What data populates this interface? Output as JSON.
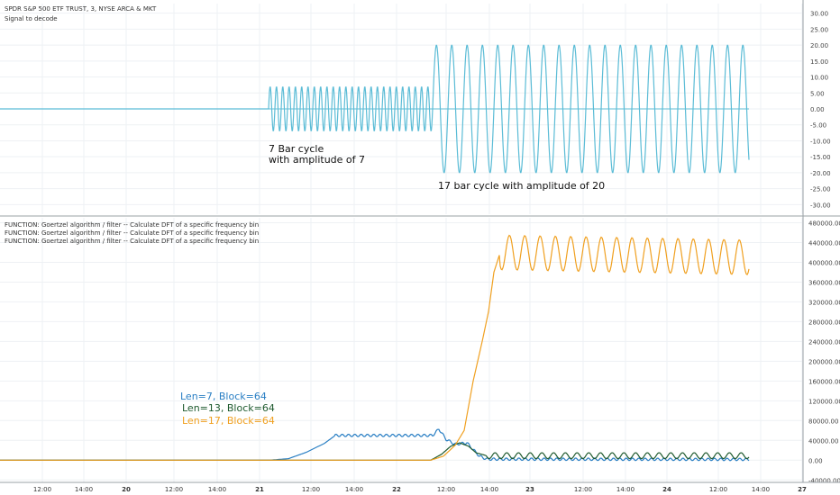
{
  "panes": {
    "top": {
      "symbol_title": "SPDR S&P 500 ETF TRUST, 3, NYSE ARCA & MKT",
      "indicator_title": "Signal to decode",
      "annotation_7": "7 Bar cycle\nwith amplitude of 7",
      "annotation_17": "17 bar cycle with amplitude of 20"
    },
    "bottom": {
      "indicator_titles": [
        "FUNCTION: Goertzel algorithm / filter -- Calculate DFT of a specific frequency bin",
        "FUNCTION: Goertzel algorithm / filter -- Calculate DFT of a specific frequency bin",
        "FUNCTION: Goertzel algorithm / filter -- Calculate DFT of a specific frequency bin"
      ],
      "legend": [
        {
          "label": "Len=7, Block=64",
          "color": "#2a7fc4"
        },
        {
          "label": "Len=13, Block=64",
          "color": "#1e5a2e"
        },
        {
          "label": "Len=17, Block=64",
          "color": "#f0a020"
        }
      ]
    }
  },
  "chart_data": [
    {
      "type": "line",
      "title": "Signal to decode",
      "ylim": [
        -33,
        33
      ],
      "yticks": [
        "30.00",
        "25.00",
        "20.00",
        "15.00",
        "10.00",
        "5.00",
        "0.00",
        "-5.00",
        "-10.00",
        "-15.00",
        "-20.00",
        "-25.00",
        "-30.00"
      ],
      "ytick_values": [
        30,
        25,
        20,
        15,
        10,
        5,
        0,
        -5,
        -10,
        -15,
        -20,
        -25,
        -30
      ],
      "series": [
        {
          "name": "Signal",
          "color": "#5bbcd6",
          "segments": [
            {
              "start_bar": 0,
              "end_bar": 298,
              "period": 0,
              "amplitude": 0
            },
            {
              "start_bar": 298,
              "end_bar": 480,
              "period": 7,
              "amplitude": 7
            },
            {
              "start_bar": 480,
              "end_bar": 831,
              "period": 17,
              "amplitude": 20
            }
          ]
        }
      ],
      "baseline": 0
    },
    {
      "type": "line",
      "title": "FUNCTION: Goertzel algorithm / filter -- Calculate DFT of a specific frequency bin",
      "ylim": [
        -45000,
        490000
      ],
      "yticks": [
        "480000.00",
        "440000.00",
        "400000.00",
        "360000.00",
        "320000.00",
        "280000.00",
        "240000.00",
        "200000.00",
        "160000.00",
        "120000.00",
        "80000.00",
        "40000.00",
        "0.00",
        "-40000.00"
      ],
      "ytick_values": [
        480000,
        440000,
        400000,
        360000,
        320000,
        280000,
        240000,
        200000,
        160000,
        120000,
        80000,
        40000,
        0,
        -40000
      ],
      "series": [
        {
          "name": "Len=7, Block=64",
          "color": "#2a7fc4",
          "points": [
            [
              0,
              0
            ],
            [
              300,
              0
            ],
            [
              320,
              3000
            ],
            [
              340,
              16000
            ],
            [
              360,
              34000
            ],
            [
              372,
              50000
            ],
            [
              480,
              50000
            ],
            [
              487,
              63000
            ],
            [
              495,
              42000
            ],
            [
              505,
              32000
            ],
            [
              518,
              35000
            ],
            [
              532,
              8000
            ],
            [
              540,
              2000
            ],
            [
              831,
              1500
            ]
          ]
        },
        {
          "name": "Len=13, Block=64",
          "color": "#1e5a2e",
          "points": [
            [
              0,
              0
            ],
            [
              478,
              0
            ],
            [
              490,
              12000
            ],
            [
              500,
              28000
            ],
            [
              510,
              35000
            ],
            [
              520,
              28000
            ],
            [
              528,
              15000
            ],
            [
              540,
              9000
            ],
            [
              831,
              9000
            ]
          ]
        },
        {
          "name": "Len=17, Block=64",
          "color": "#f0a020",
          "points": [
            [
              0,
              0
            ],
            [
              478,
              0
            ],
            [
              492,
              8000
            ],
            [
              505,
              30000
            ],
            [
              515,
              60000
            ],
            [
              525,
              160000
            ],
            [
              535,
              240000
            ],
            [
              542,
              300000
            ],
            [
              548,
              380000
            ],
            [
              555,
              420000
            ],
            [
              831,
              410000
            ]
          ]
        }
      ]
    }
  ],
  "x_axis": {
    "labels": [
      "12:00",
      "14:00",
      "20",
      "12:00",
      "14:00",
      "21",
      "12:00",
      "14:00",
      "22",
      "12:00",
      "14:00",
      "23",
      "12:00",
      "14:00",
      "24",
      "12:00",
      "14:00",
      "27"
    ],
    "bold": [
      "20",
      "21",
      "22",
      "23",
      "24",
      "27"
    ]
  }
}
